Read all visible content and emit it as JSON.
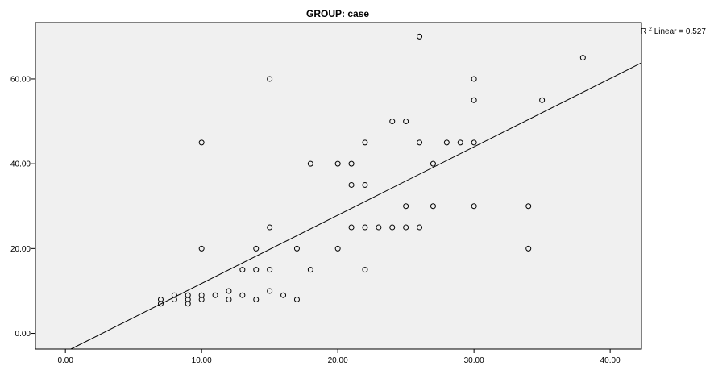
{
  "chart_data": {
    "type": "scatter",
    "title": "GROUP: case",
    "xlabel": "",
    "ylabel": "",
    "xlim": [
      -2.2,
      42.3
    ],
    "ylim": [
      -3.7,
      73.3
    ],
    "x_ticks": [
      0,
      10,
      20,
      30,
      40
    ],
    "x_tick_labels": [
      "0.00",
      "10.00",
      "20.00",
      "30.00",
      "40.00"
    ],
    "y_ticks": [
      0,
      20,
      40,
      60
    ],
    "y_tick_labels": [
      "0.00",
      "20.00",
      "40.00",
      "60.00"
    ],
    "grid": false,
    "colors": {
      "plot_background": "#f0f0f0",
      "marker_edge": "#000000",
      "fit_line": "#000000"
    },
    "fit_line": {
      "label_prefix": "R",
      "label_sup": "2",
      "label_text": " Linear = 0.527",
      "x": [
        0.4,
        42.3
      ],
      "y": [
        -3.7,
        63.8
      ]
    },
    "points": [
      [
        7,
        8
      ],
      [
        7,
        7
      ],
      [
        8,
        9
      ],
      [
        8,
        8
      ],
      [
        9,
        9
      ],
      [
        9,
        8
      ],
      [
        9,
        7
      ],
      [
        10,
        9
      ],
      [
        10,
        8
      ],
      [
        10,
        20
      ],
      [
        10,
        45
      ],
      [
        11,
        9
      ],
      [
        12,
        10
      ],
      [
        12,
        8
      ],
      [
        13,
        9
      ],
      [
        13,
        15
      ],
      [
        14,
        20
      ],
      [
        14,
        15
      ],
      [
        14,
        8
      ],
      [
        15,
        60
      ],
      [
        15,
        25
      ],
      [
        15,
        15
      ],
      [
        15,
        10
      ],
      [
        16,
        9
      ],
      [
        17,
        20
      ],
      [
        17,
        8
      ],
      [
        18,
        40
      ],
      [
        18,
        15
      ],
      [
        20,
        40
      ],
      [
        20,
        20
      ],
      [
        21,
        40
      ],
      [
        21,
        35
      ],
      [
        21,
        25
      ],
      [
        22,
        45
      ],
      [
        22,
        35
      ],
      [
        22,
        25
      ],
      [
        22,
        15
      ],
      [
        23,
        25
      ],
      [
        24,
        50
      ],
      [
        24,
        25
      ],
      [
        25,
        50
      ],
      [
        25,
        30
      ],
      [
        25,
        25
      ],
      [
        26,
        70
      ],
      [
        26,
        45
      ],
      [
        26,
        25
      ],
      [
        27,
        40
      ],
      [
        27,
        30
      ],
      [
        28,
        45
      ],
      [
        29,
        45
      ],
      [
        30,
        60
      ],
      [
        30,
        55
      ],
      [
        30,
        45
      ],
      [
        30,
        30
      ],
      [
        34,
        30
      ],
      [
        34,
        20
      ],
      [
        35,
        55
      ],
      [
        38,
        65
      ]
    ]
  }
}
